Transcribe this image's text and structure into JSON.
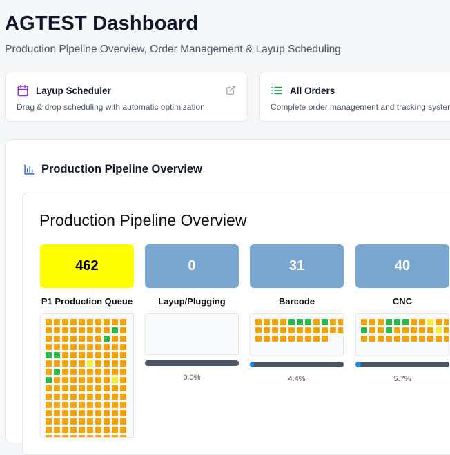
{
  "header": {
    "title": "AGTEST Dashboard",
    "subtitle": "Production Pipeline Overview, Order Management & Layup Scheduling"
  },
  "nav_cards": [
    {
      "title": "Layup Scheduler",
      "description": "Drag & drop scheduling with automatic optimization",
      "icon": "calendar-icon",
      "icon_color": "#9333ea"
    },
    {
      "title": "All Orders",
      "description": "Complete order management and tracking system",
      "icon": "list-icon",
      "icon_color": "#16a34a"
    }
  ],
  "pipeline_panel": {
    "heading": "Production Pipeline Overview",
    "icon": "bar-chart-icon",
    "inner_title": "Production Pipeline Overview"
  },
  "colors": {
    "queue_yellow": "#ffff00",
    "stage_blue": "#7aa7cf",
    "cell_orange": "#f5a30a",
    "cell_green": "#2db84d",
    "cell_yellow": "#f2ef3a",
    "progress_fill": "#1d8cf0",
    "progress_track": "#4b5563"
  },
  "stages": [
    {
      "name": "P1 Production Queue",
      "count": "462",
      "box_color": "#ffff00",
      "text_color": "#000000",
      "progress": null,
      "progress_label": ""
    },
    {
      "name": "Layup/Plugging",
      "count": "0",
      "box_color": "#7aa7cf",
      "text_color": "#ffffff",
      "progress": 0.0,
      "progress_label": "0.0%"
    },
    {
      "name": "Barcode",
      "count": "31",
      "box_color": "#7aa7cf",
      "text_color": "#ffffff",
      "progress": 0.044,
      "progress_label": "4.4%"
    },
    {
      "name": "CNC",
      "count": "40",
      "box_color": "#7aa7cf",
      "text_color": "#ffffff",
      "progress": 0.057,
      "progress_label": "5.7%"
    }
  ]
}
